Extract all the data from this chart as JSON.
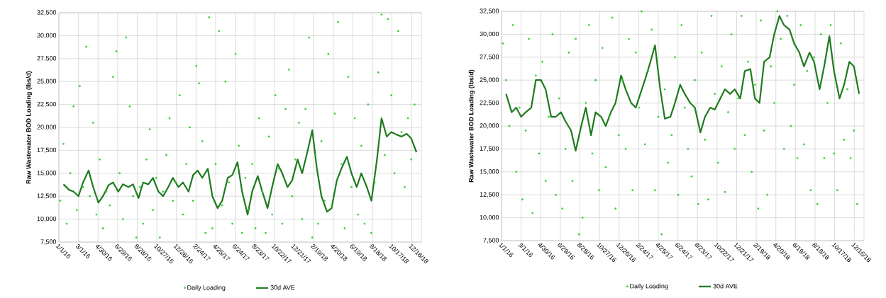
{
  "chart_data": [
    {
      "type": "line",
      "ylabel": "Raw Wastewater BOD Loading (lbs/d)",
      "grid": true,
      "legend": "bottom",
      "xlim": [
        "2016-01-01",
        "2019-01-15"
      ],
      "xticks": [
        {
          "value": "2016-01-01",
          "label": "1/1/16"
        },
        {
          "value": "2016-03-01",
          "label": "3/1/16"
        },
        {
          "value": "2016-04-30",
          "label": "4/30/16"
        },
        {
          "value": "2016-06-29",
          "label": "6/29/16"
        },
        {
          "value": "2016-08-28",
          "label": "8/28/16"
        },
        {
          "value": "2016-10-27",
          "label": "10/27/16"
        },
        {
          "value": "2016-12-26",
          "label": "12/26/16"
        },
        {
          "value": "2017-02-24",
          "label": "2/24/17"
        },
        {
          "value": "2017-04-25",
          "label": "4/25/17"
        },
        {
          "value": "2017-06-24",
          "label": "6/24/17"
        },
        {
          "value": "2017-08-23",
          "label": "8/23/17"
        },
        {
          "value": "2017-10-22",
          "label": "10/22/17"
        },
        {
          "value": "2017-12-21",
          "label": "12/21/17"
        },
        {
          "value": "2018-02-19",
          "label": "2/19/18"
        },
        {
          "value": "2018-04-20",
          "label": "4/20/18"
        },
        {
          "value": "2018-06-19",
          "label": "6/19/18"
        },
        {
          "value": "2018-08-18",
          "label": "8/18/18"
        },
        {
          "value": "2018-10-17",
          "label": "10/17/18"
        },
        {
          "value": "2018-12-16",
          "label": "12/16/18"
        }
      ],
      "ylim": [
        7500,
        32500
      ],
      "yticks": [
        {
          "value": 7500,
          "label": "7,500"
        },
        {
          "value": 10000,
          "label": "10,000"
        },
        {
          "value": 12500,
          "label": "12,500"
        },
        {
          "value": 15000,
          "label": "15,000"
        },
        {
          "value": 17500,
          "label": "17,500"
        },
        {
          "value": 20000,
          "label": "20,000"
        },
        {
          "value": 22500,
          "label": "22,500"
        },
        {
          "value": 25000,
          "label": "25,000"
        },
        {
          "value": 27500,
          "label": "27,500"
        },
        {
          "value": 30000,
          "label": "30,000"
        },
        {
          "value": 32500,
          "label": "32,500"
        }
      ],
      "x": [
        "2016-01-15",
        "2016-02-01",
        "2016-02-15",
        "2016-03-01",
        "2016-03-15",
        "2016-04-01",
        "2016-04-15",
        "2016-05-01",
        "2016-05-15",
        "2016-06-01",
        "2016-06-15",
        "2016-07-01",
        "2016-07-15",
        "2016-08-01",
        "2016-08-15",
        "2016-09-01",
        "2016-09-15",
        "2016-10-01",
        "2016-10-15",
        "2016-11-01",
        "2016-11-15",
        "2016-12-01",
        "2016-12-15",
        "2017-01-01",
        "2017-01-15",
        "2017-02-01",
        "2017-02-15",
        "2017-03-01",
        "2017-03-15",
        "2017-04-01",
        "2017-04-15",
        "2017-05-01",
        "2017-05-15",
        "2017-06-01",
        "2017-06-15",
        "2017-07-01",
        "2017-07-15",
        "2017-08-01",
        "2017-08-15",
        "2017-09-01",
        "2017-09-15",
        "2017-10-01",
        "2017-10-15",
        "2017-11-01",
        "2017-11-15",
        "2017-12-01",
        "2017-12-15",
        "2018-01-01",
        "2018-01-15",
        "2018-02-01",
        "2018-02-15",
        "2018-03-01",
        "2018-03-15",
        "2018-04-01",
        "2018-04-15",
        "2018-05-01",
        "2018-05-15",
        "2018-06-01",
        "2018-06-15",
        "2018-07-01",
        "2018-07-15",
        "2018-08-01",
        "2018-08-15",
        "2018-09-01",
        "2018-09-15",
        "2018-10-01",
        "2018-10-15",
        "2018-11-01",
        "2018-11-15",
        "2018-12-01",
        "2018-12-15",
        "2018-12-31"
      ],
      "series": [
        {
          "name": "Daily Loading",
          "type": "scatter",
          "marker": "circle",
          "color": "#33cc33",
          "x": [
            "2016-01-05",
            "2016-01-15",
            "2016-01-25",
            "2016-02-05",
            "2016-02-15",
            "2016-02-25",
            "2016-03-05",
            "2016-03-15",
            "2016-03-25",
            "2016-04-05",
            "2016-04-15",
            "2016-04-25",
            "2016-05-05",
            "2016-05-15",
            "2016-05-25",
            "2016-06-05",
            "2016-06-15",
            "2016-06-25",
            "2016-07-05",
            "2016-07-15",
            "2016-07-25",
            "2016-08-05",
            "2016-08-15",
            "2016-08-25",
            "2016-09-05",
            "2016-09-15",
            "2016-09-25",
            "2016-10-05",
            "2016-10-15",
            "2016-10-25",
            "2016-11-05",
            "2016-11-15",
            "2016-11-25",
            "2016-12-05",
            "2016-12-15",
            "2016-12-25",
            "2017-01-05",
            "2017-01-15",
            "2017-01-25",
            "2017-02-05",
            "2017-02-15",
            "2017-02-25",
            "2017-03-05",
            "2017-03-15",
            "2017-03-25",
            "2017-04-05",
            "2017-04-15",
            "2017-04-25",
            "2017-05-05",
            "2017-05-15",
            "2017-05-25",
            "2017-06-05",
            "2017-06-15",
            "2017-06-25",
            "2017-07-05",
            "2017-07-15",
            "2017-07-25",
            "2017-08-05",
            "2017-08-15",
            "2017-08-25",
            "2017-09-05",
            "2017-09-15",
            "2017-09-25",
            "2017-10-05",
            "2017-10-15",
            "2017-10-25",
            "2017-11-05",
            "2017-11-15",
            "2017-11-25",
            "2017-12-05",
            "2017-12-15",
            "2017-12-25",
            "2018-01-05",
            "2018-01-15",
            "2018-01-25",
            "2018-02-05",
            "2018-02-15",
            "2018-02-25",
            "2018-03-05",
            "2018-03-15",
            "2018-03-25",
            "2018-04-05",
            "2018-04-15",
            "2018-04-25",
            "2018-05-05",
            "2018-05-15",
            "2018-05-25",
            "2018-06-05",
            "2018-06-15",
            "2018-06-25",
            "2018-07-05",
            "2018-07-15",
            "2018-07-25",
            "2018-08-05",
            "2018-08-15",
            "2018-08-25",
            "2018-09-05",
            "2018-09-15",
            "2018-09-25",
            "2018-10-05",
            "2018-10-15",
            "2018-10-25",
            "2018-11-05",
            "2018-11-15",
            "2018-11-25",
            "2018-12-05",
            "2018-12-15",
            "2018-12-25"
          ],
          "values": [
            12000,
            18200,
            9500,
            15000,
            22300,
            11000,
            24500,
            13500,
            28800,
            12500,
            20500,
            10500,
            16500,
            9000,
            13000,
            11500,
            25500,
            28300,
            15000,
            10000,
            29800,
            22300,
            12500,
            8000,
            13500,
            9500,
            16500,
            19800,
            11000,
            14500,
            8000,
            13000,
            17000,
            21000,
            12000,
            14000,
            23500,
            10500,
            16000,
            20000,
            12000,
            26700,
            24800,
            18500,
            8500,
            32000,
            9000,
            16000,
            30500,
            11500,
            25000,
            14000,
            9500,
            28000,
            18000,
            8500,
            14500,
            11000,
            16000,
            9000,
            21000,
            13000,
            8500,
            19000,
            10500,
            23500,
            15500,
            9500,
            22000,
            26300,
            12500,
            16500,
            20500,
            10000,
            22000,
            29800,
            8000,
            17000,
            9500,
            18500,
            12000,
            28000,
            11500,
            21500,
            31500,
            16000,
            9000,
            25500,
            13500,
            21000,
            10500,
            18000,
            9500,
            22500,
            8500,
            14000,
            26000,
            32300,
            17000,
            31800,
            23500,
            15000,
            30500,
            19500,
            13500,
            21000,
            16500,
            22500
          ]
        },
        {
          "name": "30d AVE",
          "marker": "none",
          "color": "#1e7b1e",
          "values": [
            13800,
            13200,
            13000,
            12500,
            14000,
            15300,
            13500,
            11800,
            12500,
            13700,
            14000,
            13000,
            13800,
            13500,
            13800,
            12300,
            14000,
            13800,
            14500,
            13000,
            12500,
            13500,
            14500,
            13500,
            14000,
            13000,
            14800,
            15300,
            14500,
            15500,
            12500,
            11200,
            12000,
            14500,
            14800,
            16200,
            13000,
            10500,
            13000,
            14700,
            13000,
            11200,
            13500,
            16000,
            15000,
            13500,
            14200,
            16500,
            15000,
            17500,
            19700,
            15500,
            12500,
            10800,
            11200,
            14200,
            15500,
            16800,
            15000,
            13500,
            15000,
            13500,
            12000,
            16500,
            21000,
            19000,
            19500,
            19200,
            19000,
            19300,
            18800,
            17300
          ]
        }
      ]
    },
    {
      "type": "line",
      "ylabel": "Raw Wastewater BOD Loading (lbs/d)",
      "grid": true,
      "legend": "bottom",
      "xlim": [
        "2016-01-01",
        "2019-01-15"
      ],
      "xticks": [
        {
          "value": "2016-01-01",
          "label": "1/1/16"
        },
        {
          "value": "2016-03-01",
          "label": "3/1/16"
        },
        {
          "value": "2016-04-30",
          "label": "4/30/16"
        },
        {
          "value": "2016-06-29",
          "label": "6/29/16"
        },
        {
          "value": "2016-08-28",
          "label": "8/28/16"
        },
        {
          "value": "2016-10-27",
          "label": "10/27/16"
        },
        {
          "value": "2016-12-26",
          "label": "12/26/16"
        },
        {
          "value": "2017-02-24",
          "label": "2/24/17"
        },
        {
          "value": "2017-04-25",
          "label": "4/25/17"
        },
        {
          "value": "2017-06-24",
          "label": "6/24/17"
        },
        {
          "value": "2017-08-23",
          "label": "8/23/17"
        },
        {
          "value": "2017-10-22",
          "label": "10/22/17"
        },
        {
          "value": "2017-12-21",
          "label": "12/21/17"
        },
        {
          "value": "2018-02-19",
          "label": "2/19/18"
        },
        {
          "value": "2018-04-20",
          "label": "4/20/18"
        },
        {
          "value": "2018-06-19",
          "label": "6/19/18"
        },
        {
          "value": "2018-08-18",
          "label": "8/18/18"
        },
        {
          "value": "2018-10-17",
          "label": "10/17/18"
        },
        {
          "value": "2018-12-16",
          "label": "12/16/18"
        }
      ],
      "ylim": [
        7500,
        32500
      ],
      "yticks": [
        {
          "value": 7500,
          "label": "7,500"
        },
        {
          "value": 10000,
          "label": "10,000"
        },
        {
          "value": 12500,
          "label": "12,500"
        },
        {
          "value": 15000,
          "label": "15,000"
        },
        {
          "value": 17500,
          "label": "17,500"
        },
        {
          "value": 20000,
          "label": "20,000"
        },
        {
          "value": 22500,
          "label": "22,500"
        },
        {
          "value": 25000,
          "label": "25,000"
        },
        {
          "value": 27500,
          "label": "27,500"
        },
        {
          "value": 30000,
          "label": "30,000"
        },
        {
          "value": 32500,
          "label": "32,500"
        }
      ],
      "x": [
        "2016-01-15",
        "2016-02-01",
        "2016-02-15",
        "2016-03-01",
        "2016-03-15",
        "2016-04-01",
        "2016-04-15",
        "2016-05-01",
        "2016-05-15",
        "2016-06-01",
        "2016-06-15",
        "2016-07-01",
        "2016-07-15",
        "2016-08-01",
        "2016-08-15",
        "2016-09-01",
        "2016-09-15",
        "2016-10-01",
        "2016-10-15",
        "2016-11-01",
        "2016-11-15",
        "2016-12-01",
        "2016-12-15",
        "2017-01-01",
        "2017-01-15",
        "2017-02-01",
        "2017-02-15",
        "2017-03-01",
        "2017-03-15",
        "2017-04-01",
        "2017-04-15",
        "2017-05-01",
        "2017-05-15",
        "2017-06-01",
        "2017-06-15",
        "2017-07-01",
        "2017-07-15",
        "2017-08-01",
        "2017-08-15",
        "2017-09-01",
        "2017-09-15",
        "2017-10-01",
        "2017-10-15",
        "2017-11-01",
        "2017-11-15",
        "2017-12-01",
        "2017-12-15",
        "2018-01-01",
        "2018-01-15",
        "2018-02-01",
        "2018-02-15",
        "2018-03-01",
        "2018-03-15",
        "2018-04-01",
        "2018-04-15",
        "2018-05-01",
        "2018-05-15",
        "2018-06-01",
        "2018-06-15",
        "2018-07-01",
        "2018-07-15",
        "2018-08-01",
        "2018-08-15",
        "2018-09-01",
        "2018-09-15",
        "2018-10-01",
        "2018-10-15",
        "2018-11-01",
        "2018-11-15",
        "2018-12-01",
        "2018-12-15",
        "2018-12-31"
      ],
      "series": [
        {
          "name": "Daily Loading",
          "type": "scatter",
          "marker": "circle",
          "color": "#33cc33",
          "x": [
            "2016-01-05",
            "2016-01-15",
            "2016-01-25",
            "2016-02-05",
            "2016-02-15",
            "2016-02-25",
            "2016-03-05",
            "2016-03-15",
            "2016-03-25",
            "2016-04-05",
            "2016-04-15",
            "2016-04-25",
            "2016-05-05",
            "2016-05-15",
            "2016-05-25",
            "2016-06-05",
            "2016-06-15",
            "2016-06-25",
            "2016-07-05",
            "2016-07-15",
            "2016-07-25",
            "2016-08-05",
            "2016-08-15",
            "2016-08-25",
            "2016-09-05",
            "2016-09-15",
            "2016-09-25",
            "2016-10-05",
            "2016-10-15",
            "2016-10-25",
            "2016-11-05",
            "2016-11-15",
            "2016-11-25",
            "2016-12-05",
            "2016-12-15",
            "2016-12-25",
            "2017-01-05",
            "2017-01-15",
            "2017-01-25",
            "2017-02-05",
            "2017-02-15",
            "2017-02-25",
            "2017-03-05",
            "2017-03-15",
            "2017-03-25",
            "2017-04-05",
            "2017-04-15",
            "2017-04-25",
            "2017-05-05",
            "2017-05-15",
            "2017-05-25",
            "2017-06-05",
            "2017-06-15",
            "2017-06-25",
            "2017-07-05",
            "2017-07-15",
            "2017-07-25",
            "2017-08-05",
            "2017-08-15",
            "2017-08-25",
            "2017-09-05",
            "2017-09-15",
            "2017-09-25",
            "2017-10-05",
            "2017-10-15",
            "2017-10-25",
            "2017-11-05",
            "2017-11-15",
            "2017-11-25",
            "2017-12-05",
            "2017-12-15",
            "2017-12-25",
            "2018-01-05",
            "2018-01-15",
            "2018-01-25",
            "2018-02-05",
            "2018-02-15",
            "2018-02-25",
            "2018-03-05",
            "2018-03-15",
            "2018-03-25",
            "2018-04-05",
            "2018-04-15",
            "2018-04-25",
            "2018-05-05",
            "2018-05-15",
            "2018-05-25",
            "2018-06-05",
            "2018-06-15",
            "2018-06-25",
            "2018-07-05",
            "2018-07-15",
            "2018-07-25",
            "2018-08-05",
            "2018-08-15",
            "2018-08-25",
            "2018-09-05",
            "2018-09-15",
            "2018-09-25",
            "2018-10-05",
            "2018-10-15",
            "2018-10-25",
            "2018-11-05",
            "2018-11-15",
            "2018-11-25",
            "2018-12-05",
            "2018-12-15",
            "2018-12-25"
          ],
          "values": [
            29000,
            25000,
            20000,
            31000,
            15000,
            22000,
            12000,
            19500,
            29500,
            10500,
            25500,
            17000,
            27000,
            14000,
            21000,
            30000,
            12500,
            23000,
            11000,
            17500,
            28000,
            14000,
            29500,
            8200,
            10000,
            22500,
            31000,
            17000,
            25000,
            13000,
            28500,
            15500,
            21000,
            31800,
            11000,
            19000,
            25000,
            17500,
            29500,
            13000,
            28000,
            22000,
            32500,
            18000,
            26000,
            30500,
            13000,
            21000,
            8200,
            24000,
            16000,
            19000,
            27500,
            12500,
            31000,
            22000,
            17500,
            14500,
            25000,
            11500,
            28000,
            18500,
            12000,
            32000,
            23500,
            16000,
            26500,
            12800,
            21500,
            30000,
            17500,
            23000,
            32000,
            19000,
            27000,
            15000,
            24500,
            11000,
            31500,
            19500,
            12500,
            26500,
            22500,
            32500,
            29500,
            17500,
            32000,
            20000,
            24500,
            16500,
            31000,
            18000,
            26000,
            13000,
            27500,
            11500,
            30000,
            16500,
            22500,
            31000,
            17000,
            13000,
            29000,
            18500,
            24000,
            16500,
            19500,
            11500
          ]
        },
        {
          "name": "30d AVE",
          "marker": "none",
          "color": "#1e7b1e",
          "values": [
            23500,
            21500,
            22000,
            21000,
            21500,
            22000,
            25000,
            25000,
            24000,
            21000,
            21000,
            21500,
            20500,
            19500,
            17300,
            20000,
            22000,
            19000,
            21500,
            21000,
            20000,
            21500,
            22500,
            25500,
            24000,
            22500,
            22000,
            23500,
            25000,
            27000,
            28800,
            24000,
            20800,
            21000,
            22500,
            24500,
            23500,
            22500,
            22000,
            19300,
            21000,
            22000,
            21800,
            23000,
            24000,
            23500,
            24000,
            23000,
            26000,
            26200,
            23000,
            22500,
            27000,
            27500,
            30000,
            32000,
            31000,
            30500,
            29000,
            28000,
            26500,
            28000,
            27000,
            24000,
            26500,
            29800,
            26000,
            23000,
            24500,
            27000,
            26500,
            23500
          ]
        }
      ]
    }
  ]
}
